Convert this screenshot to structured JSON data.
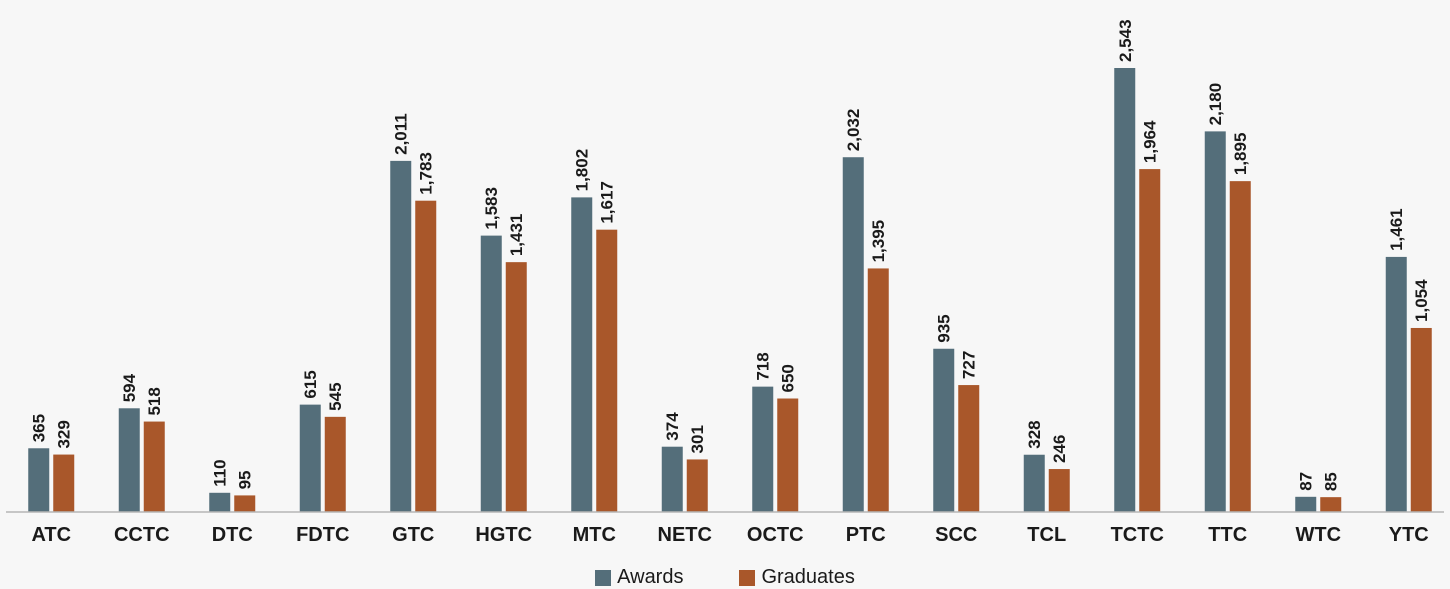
{
  "chart_data": {
    "type": "bar",
    "title": "",
    "xlabel": "",
    "ylabel": "",
    "ylim": [
      0,
      2700
    ],
    "grid": false,
    "legend_position": "bottom-center",
    "categories": [
      "ATC",
      "CCTC",
      "DTC",
      "FDTC",
      "GTC",
      "HGTC",
      "MTC",
      "NETC",
      "OCTC",
      "PTC",
      "SCC",
      "TCL",
      "TCTC",
      "TTC",
      "WTC",
      "YTC"
    ],
    "series": [
      {
        "name": "Awards",
        "color": "#546e7a",
        "values": [
          365,
          594,
          110,
          615,
          2011,
          1583,
          1802,
          374,
          718,
          2032,
          935,
          328,
          2543,
          2180,
          87,
          1461
        ],
        "labels": [
          "365",
          "594",
          "110",
          "615",
          "2,011",
          "1,583",
          "1,802",
          "374",
          "718",
          "2,032",
          "935",
          "328",
          "2,543",
          "2,180",
          "87",
          "1,461"
        ]
      },
      {
        "name": "Graduates",
        "color": "#a9572a",
        "values": [
          329,
          518,
          95,
          545,
          1783,
          1431,
          1617,
          301,
          650,
          1395,
          727,
          246,
          1964,
          1895,
          85,
          1054
        ],
        "labels": [
          "329",
          "518",
          "95",
          "545",
          "1,783",
          "1,431",
          "1,617",
          "301",
          "650",
          "1,395",
          "727",
          "246",
          "1,964",
          "1,895",
          "85",
          "1,054"
        ]
      }
    ]
  }
}
